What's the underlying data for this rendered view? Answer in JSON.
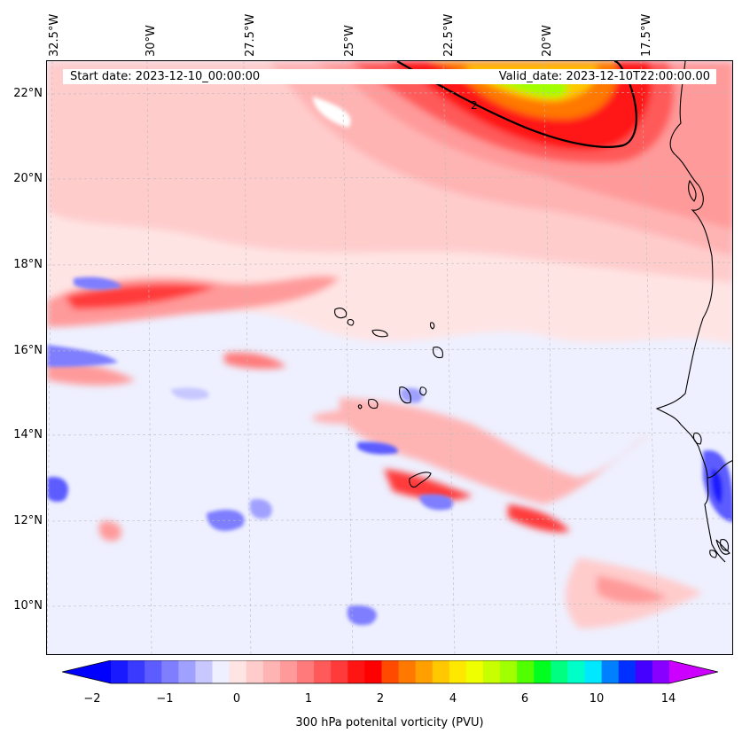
{
  "map": {
    "start_date": "Start date: 2023-12-10_00:00:00",
    "valid_date": "Valid_date: 2023-12-10T22:00:00.00",
    "contour_label": "2",
    "lat_labels": [
      "22°N",
      "20°N",
      "18°N",
      "16°N",
      "14°N",
      "12°N",
      "10°N"
    ],
    "lon_labels": [
      "32.5°W",
      "30°W",
      "27.5°W",
      "25°W",
      "22.5°W",
      "20°W",
      "17.5°W"
    ]
  },
  "colorbar": {
    "label": "300 hPa potenital vorticity (PVU)",
    "ticks": [
      "−2",
      "−1",
      "0",
      "1",
      "2",
      "4",
      "6",
      "10",
      "14"
    ],
    "colors": [
      "#1a1aff",
      "#3a3aff",
      "#5c5cff",
      "#7e7eff",
      "#a0a0ff",
      "#c8c8ff",
      "#eef0ff",
      "#ffe4e4",
      "#ffcccc",
      "#ffb4b4",
      "#ff9a9a",
      "#ff7a7a",
      "#ff5a5a",
      "#ff3a3a",
      "#ff1414",
      "#ff0000",
      "#ff4a00",
      "#ff7800",
      "#ffa000",
      "#ffc800",
      "#ffe800",
      "#f0ff00",
      "#c8ff00",
      "#a0ff00",
      "#50ff00",
      "#00ff1e",
      "#00ff80",
      "#00ffc8",
      "#00e8ff",
      "#0080ff",
      "#0030ff",
      "#4400ff",
      "#8800ff"
    ],
    "end_low": "#0000ff",
    "end_high": "#cc00ff"
  }
}
